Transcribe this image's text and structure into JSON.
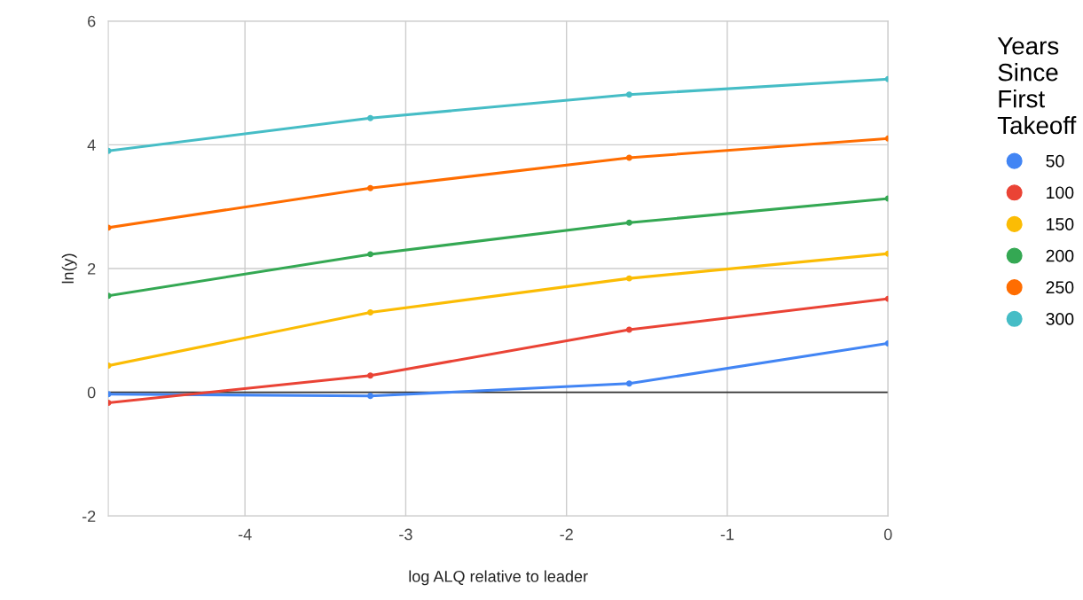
{
  "chart_data": {
    "type": "line",
    "xlabel": "log ALQ relative to leader",
    "ylabel": "ln(y)",
    "legend_title": "Years\nSince\nFirst\nTakeoff",
    "x": [
      -4.85,
      -3.22,
      -1.61,
      0
    ],
    "series": [
      {
        "name": "50",
        "color": "#4285f4",
        "values": [
          -0.03,
          -0.06,
          0.14,
          0.79
        ]
      },
      {
        "name": "100",
        "color": "#ea4335",
        "values": [
          -0.17,
          0.27,
          1.01,
          1.51
        ]
      },
      {
        "name": "150",
        "color": "#fbbc04",
        "values": [
          0.43,
          1.29,
          1.84,
          2.24
        ]
      },
      {
        "name": "200",
        "color": "#34a853",
        "values": [
          1.56,
          2.23,
          2.74,
          3.13
        ]
      },
      {
        "name": "250",
        "color": "#ff6d01",
        "values": [
          2.66,
          3.3,
          3.79,
          4.1
        ]
      },
      {
        "name": "300",
        "color": "#46bdc6",
        "values": [
          3.9,
          4.43,
          4.81,
          5.06
        ]
      }
    ],
    "xlim": [
      -4.85,
      0
    ],
    "ylim": [
      -2,
      6
    ],
    "xticks": [
      -4,
      -3,
      -2,
      -1,
      0
    ],
    "yticks": [
      -2,
      0,
      2,
      4,
      6
    ],
    "ref_lines": [
      {
        "axis": "y",
        "value": 0,
        "color": "#333333"
      }
    ],
    "grid": true,
    "legend": "right",
    "marker": "circle",
    "line_style": "solid"
  }
}
